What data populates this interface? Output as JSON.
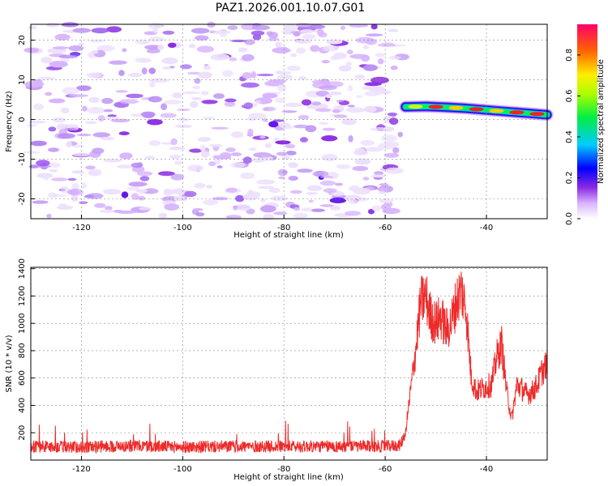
{
  "figure_title": "PAZ1.2026.001.10.07.G01",
  "colors": {
    "snr_line": "#ee2a2a",
    "low": "#b88cf5",
    "mid": "#8a2be2",
    "accent": "#5a10e8"
  },
  "chart_data": [
    {
      "type": "heatmap",
      "title": "PAZ1.2026.001.10.07.G01",
      "xlabel": "Height of straight line (km)",
      "ylabel": "Frequency (Hz)",
      "xlim": [
        -130,
        -28
      ],
      "ylim": [
        -25,
        24
      ],
      "xticks": [
        "-120",
        "-100",
        "-80",
        "-60",
        "-40"
      ],
      "yticks": [
        "20",
        "10",
        "0",
        "-10",
        "-20"
      ],
      "grid": true,
      "noise_region_x": [
        -130,
        -56
      ],
      "signal_trace": {
        "x": [
          -56,
          -52,
          -48,
          -44,
          -40,
          -36,
          -32,
          -28
        ],
        "frequency": [
          3.2,
          3.3,
          3.1,
          2.8,
          2.4,
          2.0,
          1.6,
          1.2
        ],
        "peak_amplitude": [
          0.55,
          0.75,
          0.95,
          0.85,
          0.9,
          0.8,
          0.95,
          0.9
        ]
      },
      "colorbar": {
        "label": "Normalized spectral amplitude",
        "range": [
          0.0,
          0.95
        ],
        "ticks": [
          "0.0",
          "0.2",
          "0.4",
          "0.6",
          "0.8"
        ]
      }
    },
    {
      "type": "line",
      "xlabel": "Height of straight line (km)",
      "ylabel": "SNR (10 * v/v)",
      "xlim": [
        -130,
        -28
      ],
      "ylim": [
        0,
        1410
      ],
      "xticks": [
        "-120",
        "-100",
        "-80",
        "-60",
        "-40"
      ],
      "yticks": [
        "200",
        "400",
        "600",
        "800",
        "1000",
        "1200",
        "1400"
      ],
      "grid": true,
      "series": [
        {
          "name": "SNR",
          "x": [
            -130,
            -120,
            -110,
            -100,
            -90,
            -80,
            -70,
            -60,
            -57,
            -56,
            -55,
            -54,
            -53,
            -52,
            -51,
            -50,
            -49,
            -48,
            -47,
            -46,
            -45,
            -44,
            -43,
            -42,
            -41,
            -40,
            -39,
            -38,
            -37,
            -36,
            -35,
            -34,
            -33,
            -32,
            -31,
            -30,
            -29,
            -28
          ],
          "values": [
            100,
            95,
            105,
            95,
            100,
            100,
            100,
            100,
            110,
            200,
            500,
            800,
            1150,
            1200,
            1050,
            1000,
            1050,
            950,
            1000,
            1150,
            1250,
            1100,
            600,
            500,
            520,
            540,
            550,
            750,
            850,
            500,
            300,
            550,
            520,
            480,
            500,
            550,
            650,
            700
          ]
        }
      ]
    }
  ]
}
